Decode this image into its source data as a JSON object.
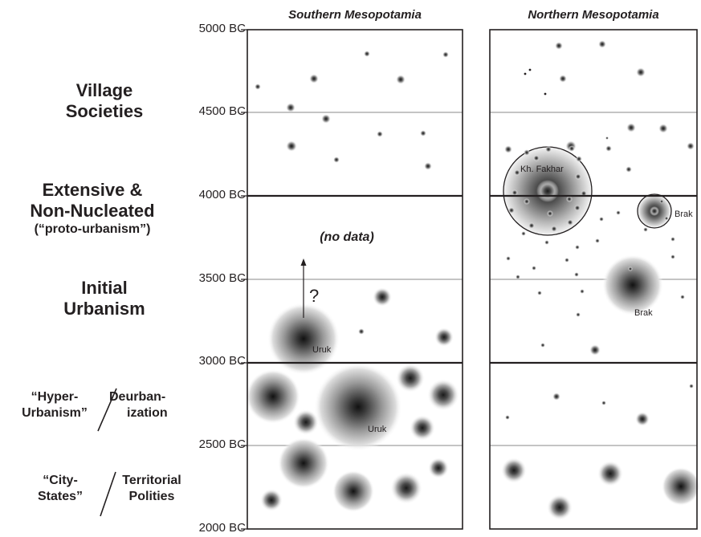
{
  "regions": {
    "south": "Southern Mesopotamia",
    "north": "Northern Mesopotamia"
  },
  "time_axis": [
    "5000 BC",
    "4500 BC",
    "4000 BC",
    "3500 BC",
    "3000 BC",
    "2500 BC",
    "2000 BC"
  ],
  "phases": {
    "village": {
      "line1": "Village",
      "line2": "Societies"
    },
    "extensive": {
      "line1": "Extensive &",
      "line2": "Non-Nucleated",
      "line3": "(“proto-urbanism”)"
    },
    "initial": {
      "line1": "Initial",
      "line2": "Urbanism"
    },
    "hyper": {
      "left1": "“Hyper-",
      "left2": "Urbanism”",
      "right1": "Deurban-",
      "right2": "ization"
    },
    "city": {
      "left1": "“City-",
      "left2": "States”",
      "right1": "Territorial",
      "right2": "Polities"
    }
  },
  "annotations": {
    "no_data": "(no data)",
    "question": "?",
    "uruk_early": "Uruk",
    "uruk_late": "Uruk",
    "fakhar": "Kh. Fakhar",
    "brak_early": "Brak",
    "brak_late": "Brak"
  },
  "colors": {
    "line": "#231f20",
    "dot_center": "#231f20",
    "background": "#ffffff"
  }
}
